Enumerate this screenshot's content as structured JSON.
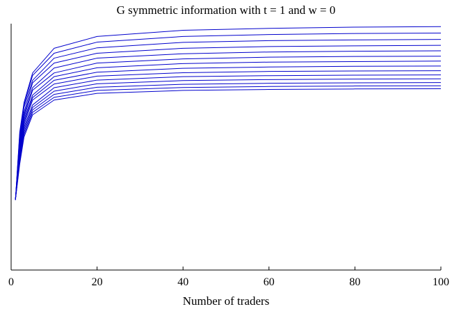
{
  "chart_data": {
    "type": "line",
    "title": "G symmetric information with t = 1 and w = 0",
    "xlabel": "Number of traders",
    "ylabel": "",
    "xlim": [
      0,
      100
    ],
    "ylim": [
      0,
      1
    ],
    "xticks": [
      0,
      20,
      40,
      60,
      80,
      100
    ],
    "grid": false,
    "legend": "none",
    "line_color": "#0000cc",
    "series": [
      {
        "x": [
          1,
          2,
          3,
          5,
          10,
          20,
          40,
          60,
          80,
          100
        ],
        "y": [
          0.285,
          0.56,
          0.68,
          0.8,
          0.9,
          0.948,
          0.973,
          0.981,
          0.986,
          0.988
        ]
      },
      {
        "x": [
          1,
          2,
          3,
          5,
          10,
          20,
          40,
          60,
          80,
          100
        ],
        "y": [
          0.285,
          0.55,
          0.67,
          0.79,
          0.88,
          0.925,
          0.948,
          0.956,
          0.96,
          0.962
        ]
      },
      {
        "x": [
          1,
          2,
          3,
          5,
          10,
          20,
          40,
          60,
          80,
          100
        ],
        "y": [
          0.285,
          0.54,
          0.66,
          0.77,
          0.86,
          0.902,
          0.924,
          0.931,
          0.934,
          0.936
        ]
      },
      {
        "x": [
          1,
          2,
          3,
          5,
          10,
          20,
          40,
          60,
          80,
          100
        ],
        "y": [
          0.285,
          0.53,
          0.64,
          0.76,
          0.84,
          0.88,
          0.9,
          0.907,
          0.91,
          0.912
        ]
      },
      {
        "x": [
          1,
          2,
          3,
          5,
          10,
          20,
          40,
          60,
          80,
          100
        ],
        "y": [
          0.285,
          0.52,
          0.63,
          0.74,
          0.82,
          0.86,
          0.878,
          0.885,
          0.888,
          0.89
        ]
      },
      {
        "x": [
          1,
          2,
          3,
          5,
          10,
          20,
          40,
          60,
          80,
          100
        ],
        "y": [
          0.285,
          0.51,
          0.62,
          0.73,
          0.8,
          0.84,
          0.857,
          0.864,
          0.867,
          0.868
        ]
      },
      {
        "x": [
          1,
          2,
          3,
          5,
          10,
          20,
          40,
          60,
          80,
          100
        ],
        "y": [
          0.285,
          0.5,
          0.61,
          0.71,
          0.785,
          0.821,
          0.838,
          0.844,
          0.846,
          0.848
        ]
      },
      {
        "x": [
          1,
          2,
          3,
          5,
          10,
          20,
          40,
          60,
          80,
          100
        ],
        "y": [
          0.285,
          0.49,
          0.6,
          0.7,
          0.77,
          0.803,
          0.819,
          0.824,
          0.827,
          0.828
        ]
      },
      {
        "x": [
          1,
          2,
          3,
          5,
          10,
          20,
          40,
          60,
          80,
          100
        ],
        "y": [
          0.285,
          0.48,
          0.59,
          0.69,
          0.755,
          0.787,
          0.801,
          0.806,
          0.808,
          0.809
        ]
      },
      {
        "x": [
          1,
          2,
          3,
          5,
          10,
          20,
          40,
          60,
          80,
          100
        ],
        "y": [
          0.285,
          0.47,
          0.58,
          0.67,
          0.74,
          0.771,
          0.785,
          0.789,
          0.791,
          0.792
        ]
      },
      {
        "x": [
          1,
          2,
          3,
          5,
          10,
          20,
          40,
          60,
          80,
          100
        ],
        "y": [
          0.285,
          0.46,
          0.57,
          0.66,
          0.726,
          0.756,
          0.769,
          0.773,
          0.775,
          0.776
        ]
      },
      {
        "x": [
          1,
          2,
          3,
          5,
          10,
          20,
          40,
          60,
          80,
          100
        ],
        "y": [
          0.285,
          0.45,
          0.56,
          0.65,
          0.713,
          0.742,
          0.754,
          0.758,
          0.76,
          0.761
        ]
      },
      {
        "x": [
          1,
          2,
          3,
          5,
          10,
          20,
          40,
          60,
          80,
          100
        ],
        "y": [
          0.285,
          0.44,
          0.55,
          0.64,
          0.701,
          0.729,
          0.741,
          0.745,
          0.747,
          0.748
        ]
      },
      {
        "x": [
          1,
          2,
          3,
          5,
          10,
          20,
          40,
          60,
          80,
          100
        ],
        "y": [
          0.285,
          0.43,
          0.54,
          0.63,
          0.69,
          0.717,
          0.729,
          0.733,
          0.735,
          0.736
        ]
      }
    ]
  }
}
